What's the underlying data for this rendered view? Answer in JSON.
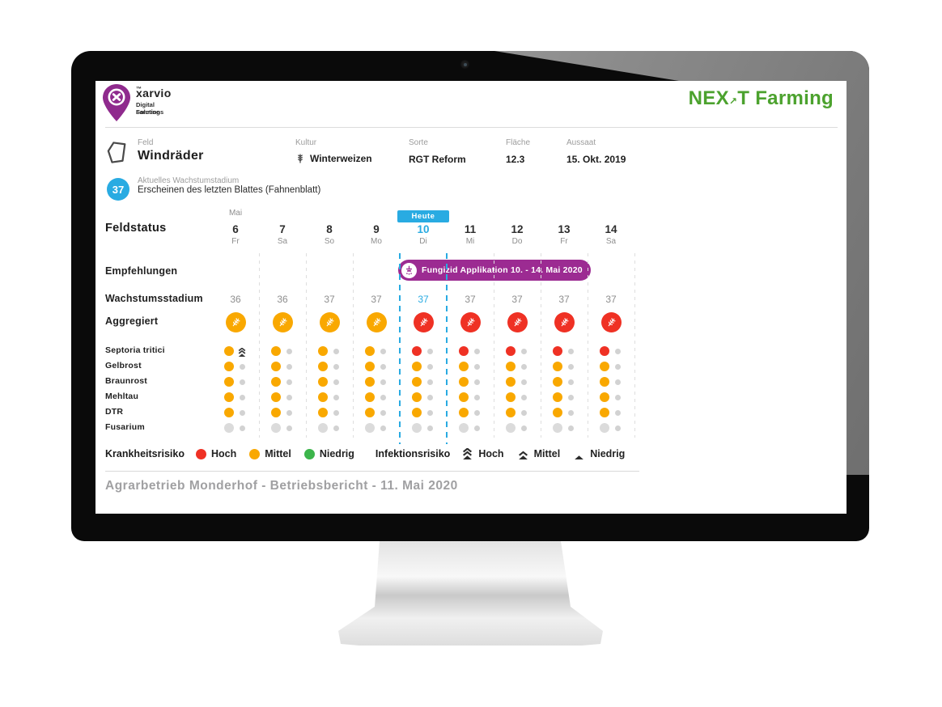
{
  "brand": {
    "name": "xarvio",
    "trademark": "™",
    "tagline_line1": "Digital Farming",
    "tagline_line2": "Solutions"
  },
  "partner": {
    "part_ne": "NE",
    "part_x": "X",
    "arrow": "↗",
    "part_rest": "T Farming"
  },
  "field": {
    "feld_label": "Feld",
    "feld_value": "Windräder",
    "kultur_label": "Kultur",
    "kultur_value": "Winterweizen",
    "sorte_label": "Sorte",
    "sorte_value": "RGT Reform",
    "flaeche_label": "Fläche",
    "flaeche_value": "12.3",
    "aussaat_label": "Aussaat",
    "aussaat_value": "15. Okt. 2019",
    "stage_number": "37",
    "stage_label": "Aktuelles Wachstumstadium",
    "stage_description": "Erscheinen des letzten Blattes (Fahnenblatt)"
  },
  "chart_data": {
    "type": "table",
    "title": "Feldstatus",
    "month_label": "Mai",
    "today_label": "Heute",
    "today_index": 4,
    "days": [
      {
        "day": "6",
        "weekday": "Fr"
      },
      {
        "day": "7",
        "weekday": "Sa"
      },
      {
        "day": "8",
        "weekday": "So"
      },
      {
        "day": "9",
        "weekday": "Mo"
      },
      {
        "day": "10",
        "weekday": "Di"
      },
      {
        "day": "11",
        "weekday": "Mi"
      },
      {
        "day": "12",
        "weekday": "Do"
      },
      {
        "day": "13",
        "weekday": "Fr"
      },
      {
        "day": "14",
        "weekday": "Sa"
      }
    ],
    "rows": {
      "empfehlungen": {
        "label": "Empfehlungen",
        "badge": {
          "text": "Fungizid Applikation 10. - 14. Mai 2020",
          "start_index": 4,
          "end_index": 8
        }
      },
      "wachstumsstadium": {
        "label": "Wachstumsstadium",
        "values": [
          "36",
          "36",
          "37",
          "37",
          "37",
          "37",
          "37",
          "37",
          "37"
        ]
      },
      "aggregiert": {
        "label": "Aggregiert",
        "risk": [
          "mittel",
          "mittel",
          "mittel",
          "mittel",
          "hoch",
          "hoch",
          "hoch",
          "hoch",
          "hoch"
        ]
      },
      "diseases": [
        {
          "label": "Septoria tritici",
          "risk": [
            "mittel",
            "mittel",
            "mittel",
            "mittel",
            "hoch",
            "hoch",
            "hoch",
            "hoch",
            "hoch"
          ],
          "infection": [
            "hoch",
            "dot",
            "dot",
            "dot",
            "dot",
            "dot",
            "dot",
            "dot",
            "dot"
          ]
        },
        {
          "label": "Gelbrost",
          "risk": [
            "mittel",
            "mittel",
            "mittel",
            "mittel",
            "mittel",
            "mittel",
            "mittel",
            "mittel",
            "mittel"
          ],
          "infection": [
            "dot",
            "dot",
            "dot",
            "dot",
            "dot",
            "dot",
            "dot",
            "dot",
            "dot"
          ]
        },
        {
          "label": "Braunrost",
          "risk": [
            "mittel",
            "mittel",
            "mittel",
            "mittel",
            "mittel",
            "mittel",
            "mittel",
            "mittel",
            "mittel"
          ],
          "infection": [
            "dot",
            "dot",
            "dot",
            "dot",
            "dot",
            "dot",
            "dot",
            "dot",
            "dot"
          ]
        },
        {
          "label": "Mehltau",
          "risk": [
            "mittel",
            "mittel",
            "mittel",
            "mittel",
            "mittel",
            "mittel",
            "mittel",
            "mittel",
            "mittel"
          ],
          "infection": [
            "dot",
            "dot",
            "dot",
            "dot",
            "dot",
            "dot",
            "dot",
            "dot",
            "dot"
          ]
        },
        {
          "label": "DTR",
          "risk": [
            "mittel",
            "mittel",
            "mittel",
            "mittel",
            "mittel",
            "mittel",
            "mittel",
            "mittel",
            "mittel"
          ],
          "infection": [
            "dot",
            "dot",
            "dot",
            "dot",
            "dot",
            "dot",
            "dot",
            "dot",
            "dot"
          ]
        },
        {
          "label": "Fusarium",
          "risk": [
            "none",
            "none",
            "none",
            "none",
            "none",
            "none",
            "none",
            "none",
            "none"
          ],
          "infection": [
            "dot",
            "dot",
            "dot",
            "dot",
            "dot",
            "dot",
            "dot",
            "dot",
            "dot"
          ]
        }
      ]
    }
  },
  "legend": {
    "krankheit_label": "Krankheitsrisiko",
    "krankheit_items": [
      {
        "label": "Hoch",
        "color_key": "hoch"
      },
      {
        "label": "Mittel",
        "color_key": "mittel"
      },
      {
        "label": "Niedrig",
        "color_key": "niedrig"
      }
    ],
    "infektion_label": "Infektionsrisiko",
    "infektion_items": [
      {
        "label": "Hoch",
        "levels": 3
      },
      {
        "label": "Mittel",
        "levels": 2
      },
      {
        "label": "Niedrig",
        "levels": 1
      }
    ]
  },
  "footer": {
    "text": "Agrarbetrieb Monderhof - Betriebsbericht - 11. Mai 2020"
  },
  "colors": {
    "hoch": "#EF3124",
    "mittel": "#F9A800",
    "niedrig": "#3CB54B",
    "none": "#DBDBDB",
    "infection_dot": "#D2D2D2",
    "infection_icon": "#3a3a3a",
    "accent_blue": "#29ABE2",
    "badge_purple": "#9C2B92",
    "brand_purple": "#8F2A8D",
    "partner_green": "#4CA22E"
  }
}
